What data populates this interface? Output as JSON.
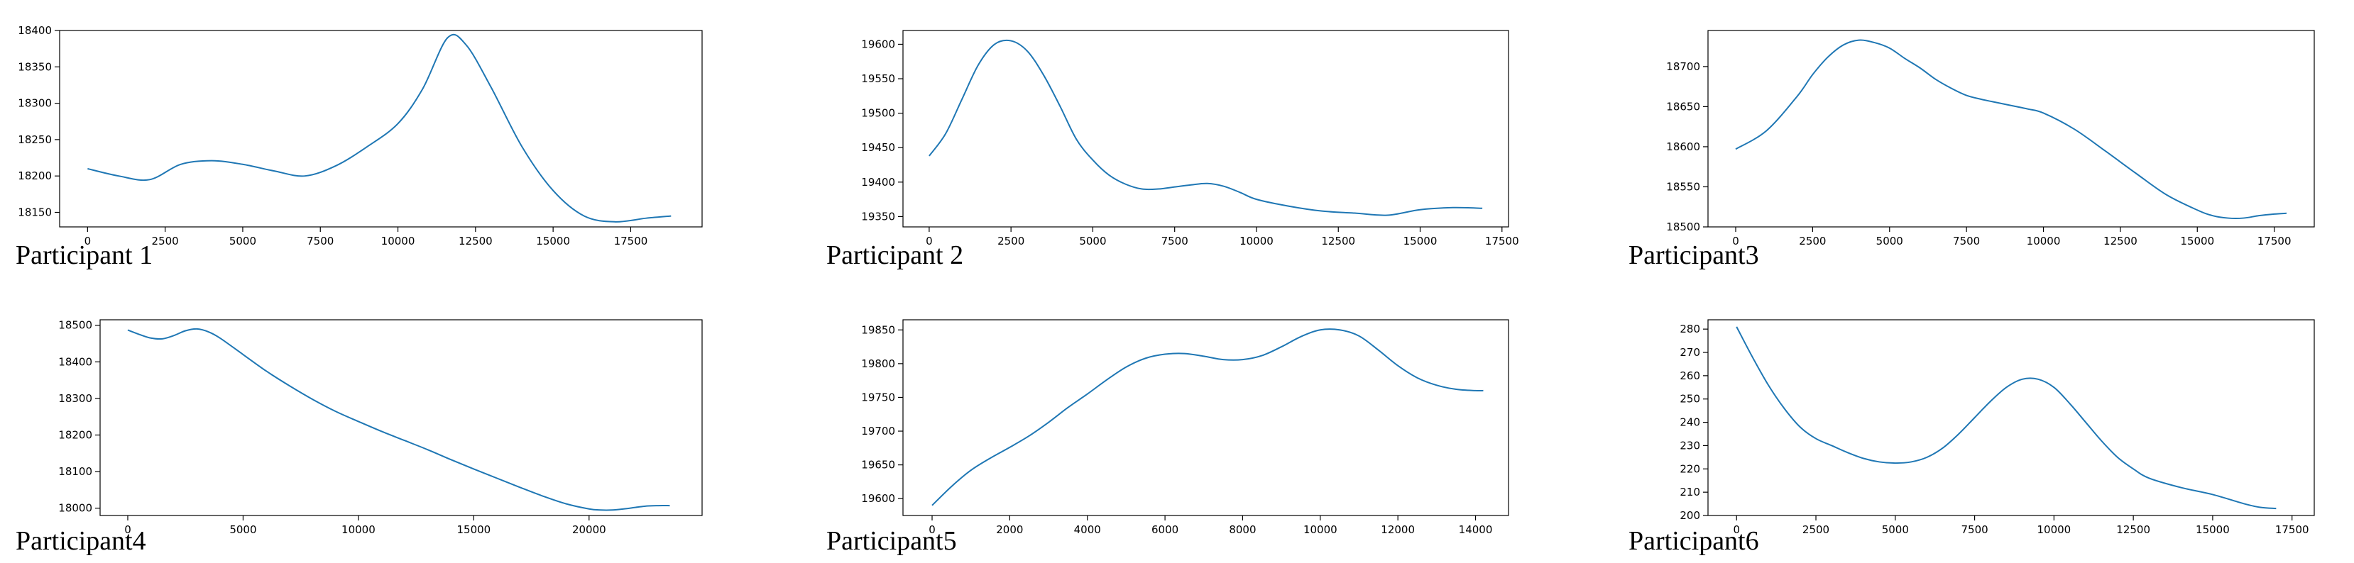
{
  "figure": {
    "line_color": "#1f77b4",
    "axis_color": "#000000",
    "background": "#ffffff"
  },
  "chart_data": [
    {
      "type": "line",
      "caption": "Participant 1",
      "xlim": [
        -900,
        19800
      ],
      "ylim": [
        18130,
        18400
      ],
      "xticks": [
        0,
        2500,
        5000,
        7500,
        10000,
        12500,
        15000,
        17500
      ],
      "yticks": [
        18150,
        18200,
        18250,
        18300,
        18350,
        18400
      ],
      "grid": false,
      "series": [
        {
          "x": [
            0,
            1000,
            2000,
            3000,
            4000,
            5000,
            6000,
            7000,
            8000,
            9000,
            10000,
            10800,
            11600,
            12200,
            13000,
            14000,
            15000,
            16000,
            17000,
            18000,
            18800
          ],
          "y": [
            18210,
            18200,
            18195,
            18216,
            18221,
            18216,
            18207,
            18200,
            18214,
            18240,
            18272,
            18320,
            18390,
            18380,
            18322,
            18240,
            18180,
            18145,
            18137,
            18142,
            18145
          ]
        }
      ]
    },
    {
      "type": "line",
      "caption": "Participant 2",
      "xlim": [
        -800,
        17700
      ],
      "ylim": [
        19335,
        19620
      ],
      "xticks": [
        0,
        2500,
        5000,
        7500,
        10000,
        12500,
        15000,
        17500
      ],
      "yticks": [
        19350,
        19400,
        19450,
        19500,
        19550,
        19600
      ],
      "grid": false,
      "series": [
        {
          "x": [
            0,
            500,
            1000,
            1500,
            2000,
            2500,
            3000,
            3500,
            4000,
            4500,
            5000,
            5500,
            6000,
            6500,
            7000,
            7500,
            8000,
            8500,
            9000,
            9500,
            10000,
            11000,
            12000,
            13000,
            14000,
            15000,
            16000,
            16900
          ],
          "y": [
            19438,
            19470,
            19520,
            19570,
            19600,
            19605,
            19590,
            19555,
            19510,
            19462,
            19432,
            19410,
            19397,
            19390,
            19390,
            19393,
            19396,
            19398,
            19394,
            19385,
            19375,
            19365,
            19358,
            19355,
            19352,
            19360,
            19363,
            19362
          ]
        }
      ]
    },
    {
      "type": "line",
      "caption": "Participant3",
      "xlim": [
        -900,
        18800
      ],
      "ylim": [
        18500,
        18745
      ],
      "xticks": [
        0,
        2500,
        5000,
        7500,
        10000,
        12500,
        15000,
        17500
      ],
      "yticks": [
        18500,
        18550,
        18600,
        18650,
        18700
      ],
      "grid": false,
      "series": [
        {
          "x": [
            0,
            1000,
            2000,
            2500,
            3000,
            3500,
            4000,
            4500,
            5000,
            5500,
            6000,
            6500,
            7000,
            7500,
            8000,
            8500,
            9000,
            9500,
            10000,
            11000,
            12000,
            13000,
            14000,
            15000,
            15500,
            16000,
            16500,
            17000,
            17500,
            17900
          ],
          "y": [
            18597,
            18620,
            18663,
            18690,
            18712,
            18727,
            18733,
            18730,
            18723,
            18710,
            18698,
            18684,
            18673,
            18664,
            18659,
            18655,
            18651,
            18647,
            18642,
            18622,
            18595,
            18567,
            18540,
            18521,
            18514,
            18511,
            18511,
            18514,
            18516,
            18517
          ]
        }
      ]
    },
    {
      "type": "line",
      "caption": "Participant4",
      "xlim": [
        -1200,
        24900
      ],
      "ylim": [
        17980,
        18515
      ],
      "xticks": [
        0,
        5000,
        10000,
        15000,
        20000
      ],
      "yticks": [
        18000,
        18100,
        18200,
        18300,
        18400,
        18500
      ],
      "grid": false,
      "series": [
        {
          "x": [
            0,
            500,
            1000,
            1500,
            2000,
            2500,
            3000,
            3500,
            4000,
            5000,
            6000,
            7000,
            8000,
            9000,
            10000,
            11000,
            12000,
            13000,
            14000,
            15000,
            16000,
            17000,
            18000,
            19000,
            20000,
            20500,
            21000,
            21500,
            22000,
            22500,
            23000,
            23500
          ],
          "y": [
            18487,
            18475,
            18465,
            18463,
            18472,
            18485,
            18490,
            18482,
            18465,
            18420,
            18375,
            18335,
            18298,
            18265,
            18237,
            18210,
            18185,
            18160,
            18133,
            18107,
            18082,
            18057,
            18033,
            18012,
            17998,
            17995,
            17995,
            17998,
            18002,
            18006,
            18007,
            18007
          ]
        }
      ]
    },
    {
      "type": "line",
      "caption": "Participant5",
      "xlim": [
        -750,
        14850
      ],
      "ylim": [
        19575,
        19865
      ],
      "xticks": [
        0,
        2000,
        4000,
        6000,
        8000,
        10000,
        12000,
        14000
      ],
      "yticks": [
        19600,
        19650,
        19700,
        19750,
        19800,
        19850
      ],
      "grid": false,
      "series": [
        {
          "x": [
            0,
            500,
            1000,
            1500,
            2000,
            2500,
            3000,
            3500,
            4000,
            4500,
            5000,
            5500,
            6000,
            6500,
            7000,
            7500,
            8000,
            8500,
            9000,
            9500,
            10000,
            10500,
            11000,
            11500,
            12000,
            12500,
            13000,
            13500,
            14000,
            14200
          ],
          "y": [
            19590,
            19618,
            19642,
            19660,
            19676,
            19693,
            19713,
            19735,
            19755,
            19776,
            19795,
            19808,
            19814,
            19815,
            19811,
            19806,
            19806,
            19812,
            19825,
            19840,
            19850,
            19850,
            19841,
            19820,
            19797,
            19779,
            19768,
            19762,
            19760,
            19760
          ]
        }
      ]
    },
    {
      "type": "line",
      "caption": "Participant6",
      "xlim": [
        -900,
        18200
      ],
      "ylim": [
        200,
        284
      ],
      "xticks": [
        0,
        2500,
        5000,
        7500,
        10000,
        12500,
        15000,
        17500
      ],
      "yticks": [
        200,
        210,
        220,
        230,
        240,
        250,
        260,
        270,
        280
      ],
      "grid": false,
      "series": [
        {
          "x": [
            0,
            500,
            1000,
            1500,
            2000,
            2500,
            3000,
            3500,
            4000,
            4500,
            5000,
            5500,
            6000,
            6500,
            7000,
            7500,
            8000,
            8500,
            9000,
            9500,
            10000,
            10500,
            11000,
            11500,
            12000,
            12500,
            13000,
            14000,
            15000,
            16000,
            16500,
            17000
          ],
          "y": [
            281,
            268,
            256,
            246,
            238,
            233,
            230,
            227,
            224.5,
            223,
            222.5,
            223,
            225,
            229,
            235,
            242,
            249,
            255,
            258.5,
            258.5,
            255,
            248,
            240,
            232,
            225,
            220,
            216,
            212,
            209,
            205,
            203.5,
            203
          ]
        }
      ]
    }
  ]
}
